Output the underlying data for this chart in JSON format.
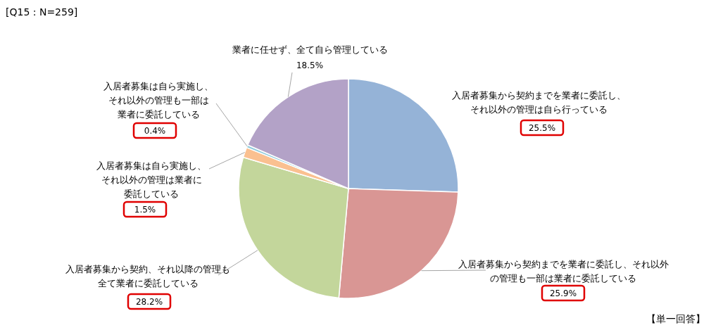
{
  "chart_data": {
    "type": "pie",
    "categories": [
      "入居者募集から契約までを業者に委託し、それ以外の管理は自ら行っている",
      "入居者募集から契約までを業者に委託し、それ以外の管理も一部は業者に委託している",
      "入居者募集から契約、それ以降の管理も全て業者に委託している",
      "入居者募集は自ら実施し、それ以外の管理は業者に委託している",
      "入居者募集は自ら実施し、それ以外の管理も一部は業者に委託している",
      "業者に任せず、全て自ら管理している"
    ],
    "values": [
      25.5,
      25.9,
      28.2,
      1.5,
      0.4,
      18.5
    ],
    "value_labels": [
      "25.5%",
      "25.9%",
      "28.2%",
      "1.5%",
      "0.4%",
      "18.5%"
    ],
    "colors": [
      "#95b3d7",
      "#d99694",
      "#c3d69b",
      "#fac090",
      "#93cddd",
      "#b3a2c7"
    ],
    "annotations": [
      "[Q15 : N=259]",
      "【単一回答】"
    ]
  }
}
